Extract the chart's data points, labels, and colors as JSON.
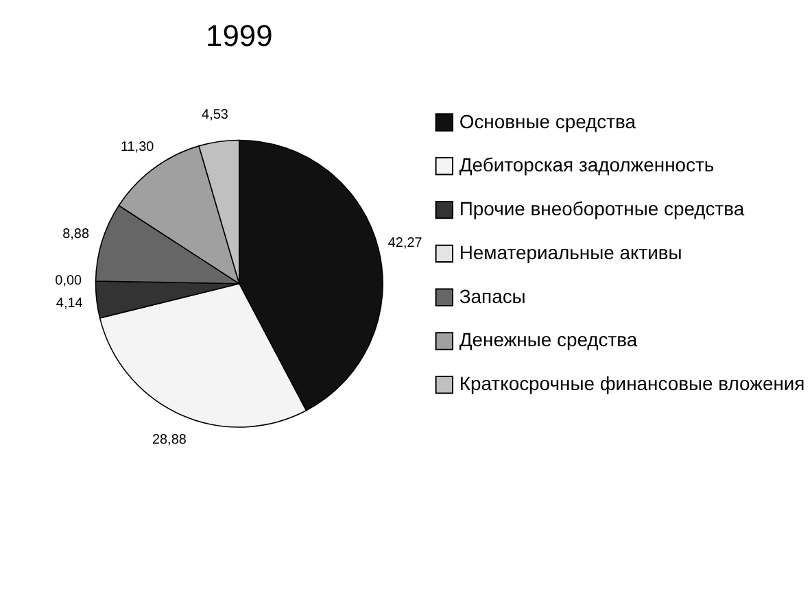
{
  "chart_data": {
    "type": "pie",
    "title": "1999",
    "categories": [
      "Основные средства",
      "Дебиторская задолженность",
      "Прочие внеоборотные средства",
      "Нематериальные активы",
      "Запасы",
      "Денежные средства",
      "Краткосрочные финансовые вложения"
    ],
    "values": [
      42.27,
      28.88,
      4.14,
      0.0,
      8.88,
      11.3,
      4.53
    ],
    "colors": [
      "#111111",
      "#f4f4f4",
      "#333333",
      "#e4e4e4",
      "#666666",
      "#a0a0a0",
      "#c0c0c0"
    ],
    "value_labels": [
      "42,27",
      "28,88",
      "4,14",
      "0,00",
      "8,88",
      "11,30",
      "4,53"
    ],
    "legend": "right"
  }
}
